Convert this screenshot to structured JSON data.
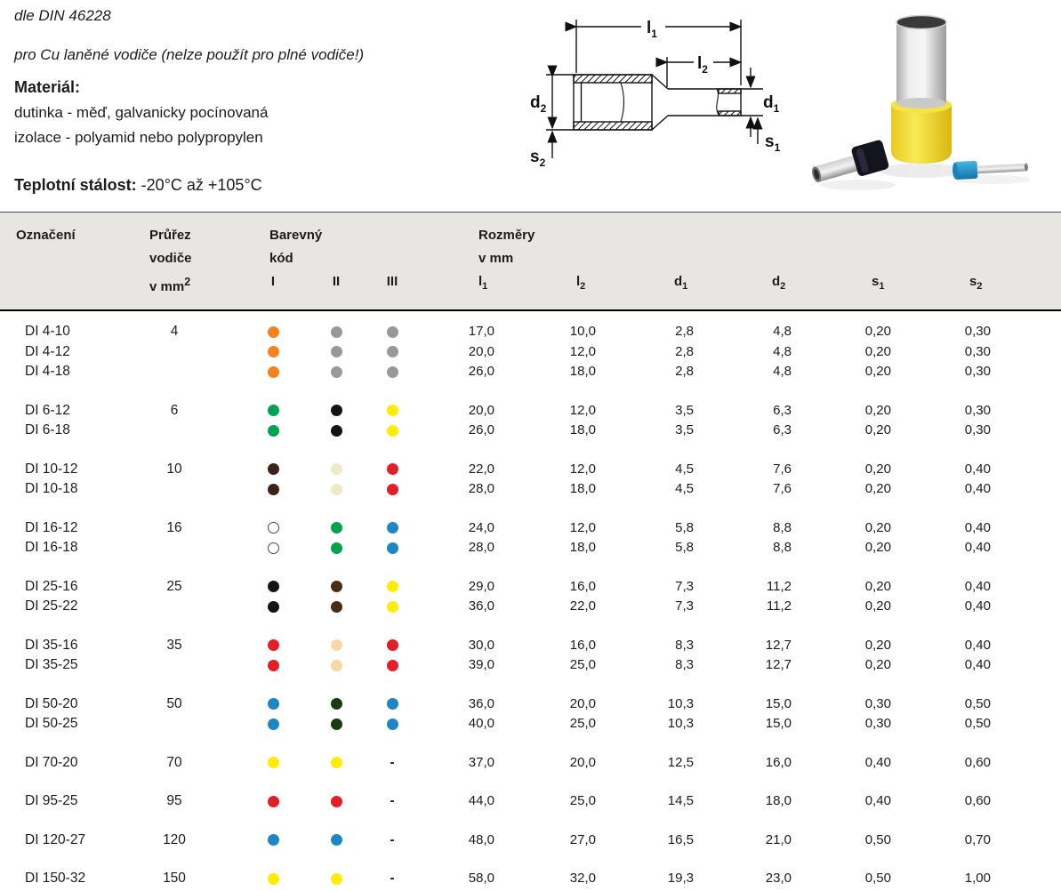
{
  "intro": {
    "din_note": "dle DIN 46228",
    "usage_note": "pro Cu laněné vodiče (nelze použít pro plné vodiče!)",
    "material_label": "Materiál:",
    "material_line1": "dutinka - měď, galvanicky pocínovaná",
    "material_line2": "izolace - polyamid nebo polypropylen",
    "temp_label": "Teplotní stálost:",
    "temp_value": " -20°C až +105°C"
  },
  "diagram": {
    "l1": {
      "m": "l",
      "s": "1"
    },
    "l2": {
      "m": "l",
      "s": "2"
    },
    "d1": {
      "m": "d",
      "s": "1"
    },
    "d2": {
      "m": "d",
      "s": "2"
    },
    "s1": {
      "m": "s",
      "s": "1"
    },
    "s2": {
      "m": "s",
      "s": "2"
    }
  },
  "colors": {
    "header_bg": "#E8E6E2",
    "top_rule": "#4a4a4a",
    "heavy_rule": "#000000"
  },
  "table": {
    "header": {
      "oznaceni": "Označení",
      "prurez": [
        "Průřez",
        "vodiče",
        "v mm"
      ],
      "prurez_sup": "2",
      "barevny": [
        "Barevný",
        "kód"
      ],
      "codes": [
        "I",
        "II",
        "III"
      ],
      "rozmery": [
        "Rozměry",
        "v mm"
      ],
      "dims": [
        {
          "m": "l",
          "s": "1"
        },
        {
          "m": "l",
          "s": "2"
        },
        {
          "m": "d",
          "s": "1"
        },
        {
          "m": "d",
          "s": "2"
        },
        {
          "m": "s",
          "s": "1"
        },
        {
          "m": "s",
          "s": "2"
        }
      ]
    },
    "dash": "-",
    "dot_colors": {
      "orange": "#F6821F",
      "gray": "#97999B",
      "green": "#00A34E",
      "black": "#141414",
      "yellow": "#FFEC00",
      "darkbrown": "#3A2418",
      "ivory": "#EFE9C7",
      "red": "#E31E24",
      "white": "#FFFFFF",
      "brown": "#4B2D16",
      "beige": "#F8D8A6",
      "blue": "#1F86C5",
      "darkgreen": "#183B10"
    },
    "groups": [
      {
        "cross": "4",
        "rows": [
          {
            "name": "DI 4-10",
            "dots": [
              "orange",
              "gray",
              "gray"
            ],
            "vals": [
              "17,0",
              "10,0",
              "2,8",
              "4,8",
              "0,20",
              "0,30"
            ]
          },
          {
            "name": "DI 4-12",
            "dots": [
              "orange",
              "gray",
              "gray"
            ],
            "vals": [
              "20,0",
              "12,0",
              "2,8",
              "4,8",
              "0,20",
              "0,30"
            ]
          },
          {
            "name": "DI 4-18",
            "dots": [
              "orange",
              "gray",
              "gray"
            ],
            "vals": [
              "26,0",
              "18,0",
              "2,8",
              "4,8",
              "0,20",
              "0,30"
            ]
          }
        ]
      },
      {
        "cross": "6",
        "rows": [
          {
            "name": "DI 6-12",
            "dots": [
              "green",
              "black",
              "yellow"
            ],
            "vals": [
              "20,0",
              "12,0",
              "3,5",
              "6,3",
              "0,20",
              "0,30"
            ]
          },
          {
            "name": "DI 6-18",
            "dots": [
              "green",
              "black",
              "yellow"
            ],
            "vals": [
              "26,0",
              "18,0",
              "3,5",
              "6,3",
              "0,20",
              "0,30"
            ]
          }
        ]
      },
      {
        "cross": "10",
        "rows": [
          {
            "name": "DI 10-12",
            "dots": [
              "darkbrown",
              "ivory",
              "red"
            ],
            "vals": [
              "22,0",
              "12,0",
              "4,5",
              "7,6",
              "0,20",
              "0,40"
            ]
          },
          {
            "name": "DI 10-18",
            "dots": [
              "darkbrown",
              "ivory",
              "red"
            ],
            "vals": [
              "28,0",
              "18,0",
              "4,5",
              "7,6",
              "0,20",
              "0,40"
            ]
          }
        ]
      },
      {
        "cross": "16",
        "rows": [
          {
            "name": "DI 16-12",
            "dots": [
              "white",
              "green",
              "blue"
            ],
            "vals": [
              "24,0",
              "12,0",
              "5,8",
              "8,8",
              "0,20",
              "0,40"
            ]
          },
          {
            "name": "DI 16-18",
            "dots": [
              "white",
              "green",
              "blue"
            ],
            "vals": [
              "28,0",
              "18,0",
              "5,8",
              "8,8",
              "0,20",
              "0,40"
            ]
          }
        ]
      },
      {
        "cross": "25",
        "rows": [
          {
            "name": "DI 25-16",
            "dots": [
              "black",
              "brown",
              "yellow"
            ],
            "vals": [
              "29,0",
              "16,0",
              "7,3",
              "11,2",
              "0,20",
              "0,40"
            ]
          },
          {
            "name": "DI 25-22",
            "dots": [
              "black",
              "brown",
              "yellow"
            ],
            "vals": [
              "36,0",
              "22,0",
              "7,3",
              "11,2",
              "0,20",
              "0,40"
            ]
          }
        ]
      },
      {
        "cross": "35",
        "rows": [
          {
            "name": "DI 35-16",
            "dots": [
              "red",
              "beige",
              "red"
            ],
            "vals": [
              "30,0",
              "16,0",
              "8,3",
              "12,7",
              "0,20",
              "0,40"
            ]
          },
          {
            "name": "DI 35-25",
            "dots": [
              "red",
              "beige",
              "red"
            ],
            "vals": [
              "39,0",
              "25,0",
              "8,3",
              "12,7",
              "0,20",
              "0,40"
            ]
          }
        ]
      },
      {
        "cross": "50",
        "rows": [
          {
            "name": "DI 50-20",
            "dots": [
              "blue",
              "darkgreen",
              "blue"
            ],
            "vals": [
              "36,0",
              "20,0",
              "10,3",
              "15,0",
              "0,30",
              "0,50"
            ]
          },
          {
            "name": "DI 50-25",
            "dots": [
              "blue",
              "darkgreen",
              "blue"
            ],
            "vals": [
              "40,0",
              "25,0",
              "10,3",
              "15,0",
              "0,30",
              "0,50"
            ]
          }
        ]
      },
      {
        "cross": "70",
        "rows": [
          {
            "name": "DI 70-20",
            "dots": [
              "yellow",
              "yellow",
              "dash"
            ],
            "vals": [
              "37,0",
              "20,0",
              "12,5",
              "16,0",
              "0,40",
              "0,60"
            ]
          }
        ]
      },
      {
        "cross": "95",
        "rows": [
          {
            "name": "DI 95-25",
            "dots": [
              "red",
              "red",
              "dash"
            ],
            "vals": [
              "44,0",
              "25,0",
              "14,5",
              "18,0",
              "0,40",
              "0,60"
            ]
          }
        ]
      },
      {
        "cross": "120",
        "rows": [
          {
            "name": "DI 120-27",
            "dots": [
              "blue",
              "blue",
              "dash"
            ],
            "vals": [
              "48,0",
              "27,0",
              "16,5",
              "21,0",
              "0,50",
              "0,70"
            ]
          }
        ]
      },
      {
        "cross": "150",
        "rows": [
          {
            "name": "DI 150-32",
            "dots": [
              "yellow",
              "yellow",
              "dash"
            ],
            "vals": [
              "58,0",
              "32,0",
              "19,3",
              "23,0",
              "0,50",
              "1,00"
            ]
          }
        ]
      }
    ]
  }
}
